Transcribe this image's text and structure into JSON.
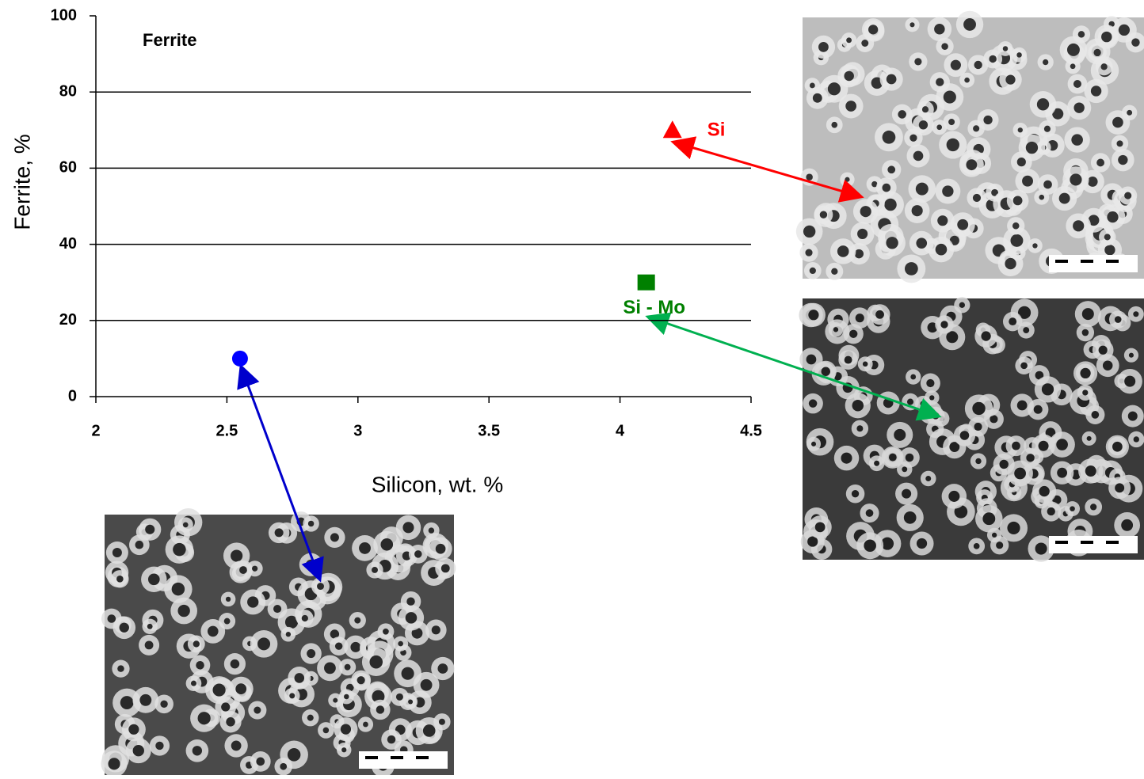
{
  "chart_data": {
    "type": "scatter",
    "title": "Ferrite",
    "x_label": "Silicon, wt. %",
    "y_label": "Ferrite, %",
    "xlim": [
      2,
      4.5
    ],
    "xticks": [
      2,
      2.5,
      3,
      3.5,
      4,
      4.5
    ],
    "ylim": [
      0,
      100
    ],
    "yticks": [
      0,
      20,
      40,
      60,
      80,
      100
    ],
    "grid": true,
    "series": [
      {
        "color": "#0000ff",
        "marker": "circle",
        "x": [
          2.55
        ],
        "values": [
          10
        ]
      },
      {
        "name": "Si - Mo",
        "color": "#008000",
        "marker": "square",
        "x": [
          4.1
        ],
        "values": [
          30
        ]
      },
      {
        "name": "Si",
        "color": "#ff0000",
        "marker": "triangle",
        "x": [
          4.2
        ],
        "values": [
          70
        ]
      }
    ]
  }
}
